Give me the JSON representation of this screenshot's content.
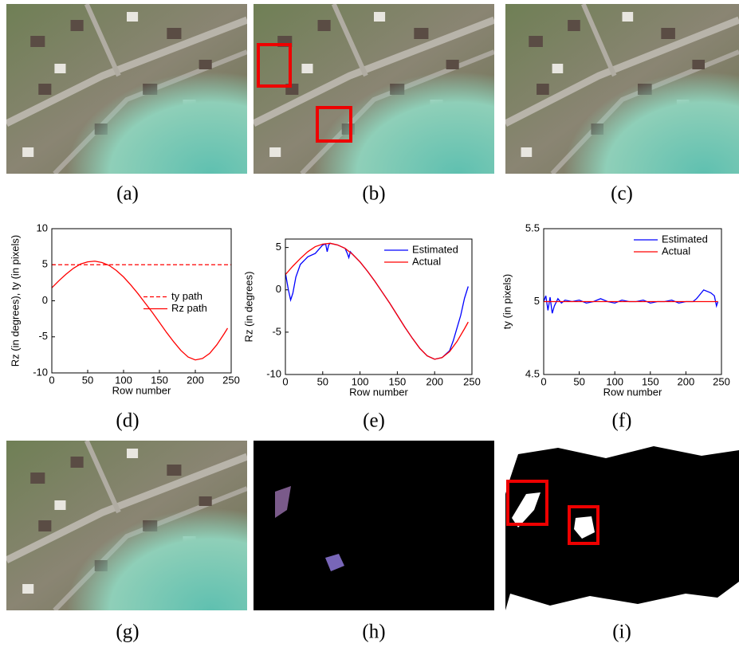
{
  "captions": [
    "(a)",
    "(b)",
    "(c)",
    "(d)",
    "(e)",
    "(f)",
    "(g)",
    "(h)",
    "(i)"
  ],
  "chart_data": [
    {
      "type": "line",
      "xlabel": "Row number",
      "ylabel": "Rz (in degrees), ty (in pixels)",
      "xlim": [
        0,
        250
      ],
      "xticks": [
        0,
        50,
        100,
        150,
        200,
        250
      ],
      "ylim": [
        -10,
        10
      ],
      "yticks": [
        -10,
        -5,
        0,
        5,
        10
      ],
      "legend": "right",
      "series": [
        {
          "name": "ty path",
          "color": "#ff0000",
          "dashed": true,
          "x": [
            0,
            250
          ],
          "values": [
            5,
            5
          ]
        },
        {
          "name": "Rz path",
          "color": "#ff0000",
          "dashed": false,
          "x": [
            0,
            10,
            20,
            30,
            40,
            50,
            60,
            70,
            80,
            90,
            100,
            110,
            120,
            130,
            140,
            150,
            160,
            170,
            180,
            190,
            200,
            210,
            220,
            230,
            240,
            245
          ],
          "values": [
            1.8,
            2.8,
            3.7,
            4.5,
            5.1,
            5.4,
            5.5,
            5.3,
            4.9,
            4.2,
            3.3,
            2.2,
            1.0,
            -0.3,
            -1.6,
            -3.0,
            -4.4,
            -5.7,
            -6.9,
            -7.8,
            -8.2,
            -8.0,
            -7.3,
            -6.1,
            -4.6,
            -3.8
          ]
        }
      ]
    },
    {
      "type": "line",
      "xlabel": "Row number",
      "ylabel": "Rz (in degrees)",
      "xlim": [
        0,
        250
      ],
      "xticks": [
        0,
        50,
        100,
        150,
        200,
        250
      ],
      "ylim": [
        -10,
        6
      ],
      "yticks": [
        -10,
        -5,
        0,
        5
      ],
      "legend": "upper right",
      "series": [
        {
          "name": "Estimated",
          "color": "#0000ff",
          "dashed": false,
          "x": [
            0,
            4,
            7,
            10,
            14,
            20,
            30,
            40,
            50,
            54,
            56,
            58,
            60,
            70,
            80,
            83,
            85,
            87,
            90,
            100,
            110,
            120,
            130,
            140,
            150,
            160,
            170,
            180,
            190,
            200,
            210,
            220,
            225,
            230,
            235,
            240,
            245
          ],
          "values": [
            2.0,
            0,
            -1.2,
            -0.4,
            1.5,
            3.0,
            3.9,
            4.3,
            5.3,
            5.4,
            4.5,
            5.3,
            5.5,
            5.3,
            4.9,
            4.3,
            3.8,
            4.5,
            4.2,
            3.3,
            2.2,
            1.0,
            -0.3,
            -1.6,
            -3.0,
            -4.4,
            -5.7,
            -6.9,
            -7.8,
            -8.2,
            -8.0,
            -7.2,
            -6.0,
            -4.5,
            -3.0,
            -1.0,
            0.4
          ]
        },
        {
          "name": "Actual",
          "color": "#ff0000",
          "dashed": false,
          "x": [
            0,
            10,
            20,
            30,
            40,
            50,
            60,
            70,
            80,
            90,
            100,
            110,
            120,
            130,
            140,
            150,
            160,
            170,
            180,
            190,
            200,
            210,
            220,
            230,
            240,
            245
          ],
          "values": [
            1.8,
            2.8,
            3.7,
            4.5,
            5.1,
            5.4,
            5.5,
            5.3,
            4.9,
            4.2,
            3.3,
            2.2,
            1.0,
            -0.3,
            -1.6,
            -3.0,
            -4.4,
            -5.7,
            -6.9,
            -7.8,
            -8.2,
            -8.0,
            -7.3,
            -6.1,
            -4.6,
            -3.8
          ]
        }
      ]
    },
    {
      "type": "line",
      "xlabel": "Row number",
      "ylabel": "ty (in pixels)",
      "xlim": [
        0,
        250
      ],
      "xticks": [
        0,
        50,
        100,
        150,
        200,
        250
      ],
      "ylim": [
        4.5,
        5.5
      ],
      "yticks": [
        4.5,
        5,
        5.5
      ],
      "legend": "upper right",
      "series": [
        {
          "name": "Estimated",
          "color": "#0000ff",
          "dashed": false,
          "x": [
            0,
            3,
            6,
            9,
            12,
            15,
            20,
            25,
            30,
            40,
            50,
            60,
            70,
            80,
            90,
            100,
            110,
            120,
            130,
            140,
            150,
            160,
            170,
            180,
            190,
            200,
            210,
            215,
            220,
            225,
            230,
            235,
            240,
            243,
            245
          ],
          "values": [
            5.0,
            5.04,
            4.94,
            5.03,
            4.92,
            4.97,
            5.02,
            4.99,
            5.01,
            5.0,
            5.01,
            4.99,
            5.0,
            5.02,
            5.0,
            4.99,
            5.01,
            5.0,
            5.0,
            5.01,
            4.99,
            5.0,
            5.0,
            5.01,
            4.99,
            5.0,
            5.0,
            5.02,
            5.05,
            5.08,
            5.07,
            5.06,
            5.04,
            4.97,
            5.0
          ]
        },
        {
          "name": "Actual",
          "color": "#ff0000",
          "dashed": false,
          "x": [
            0,
            245
          ],
          "values": [
            5,
            5
          ]
        }
      ]
    }
  ]
}
